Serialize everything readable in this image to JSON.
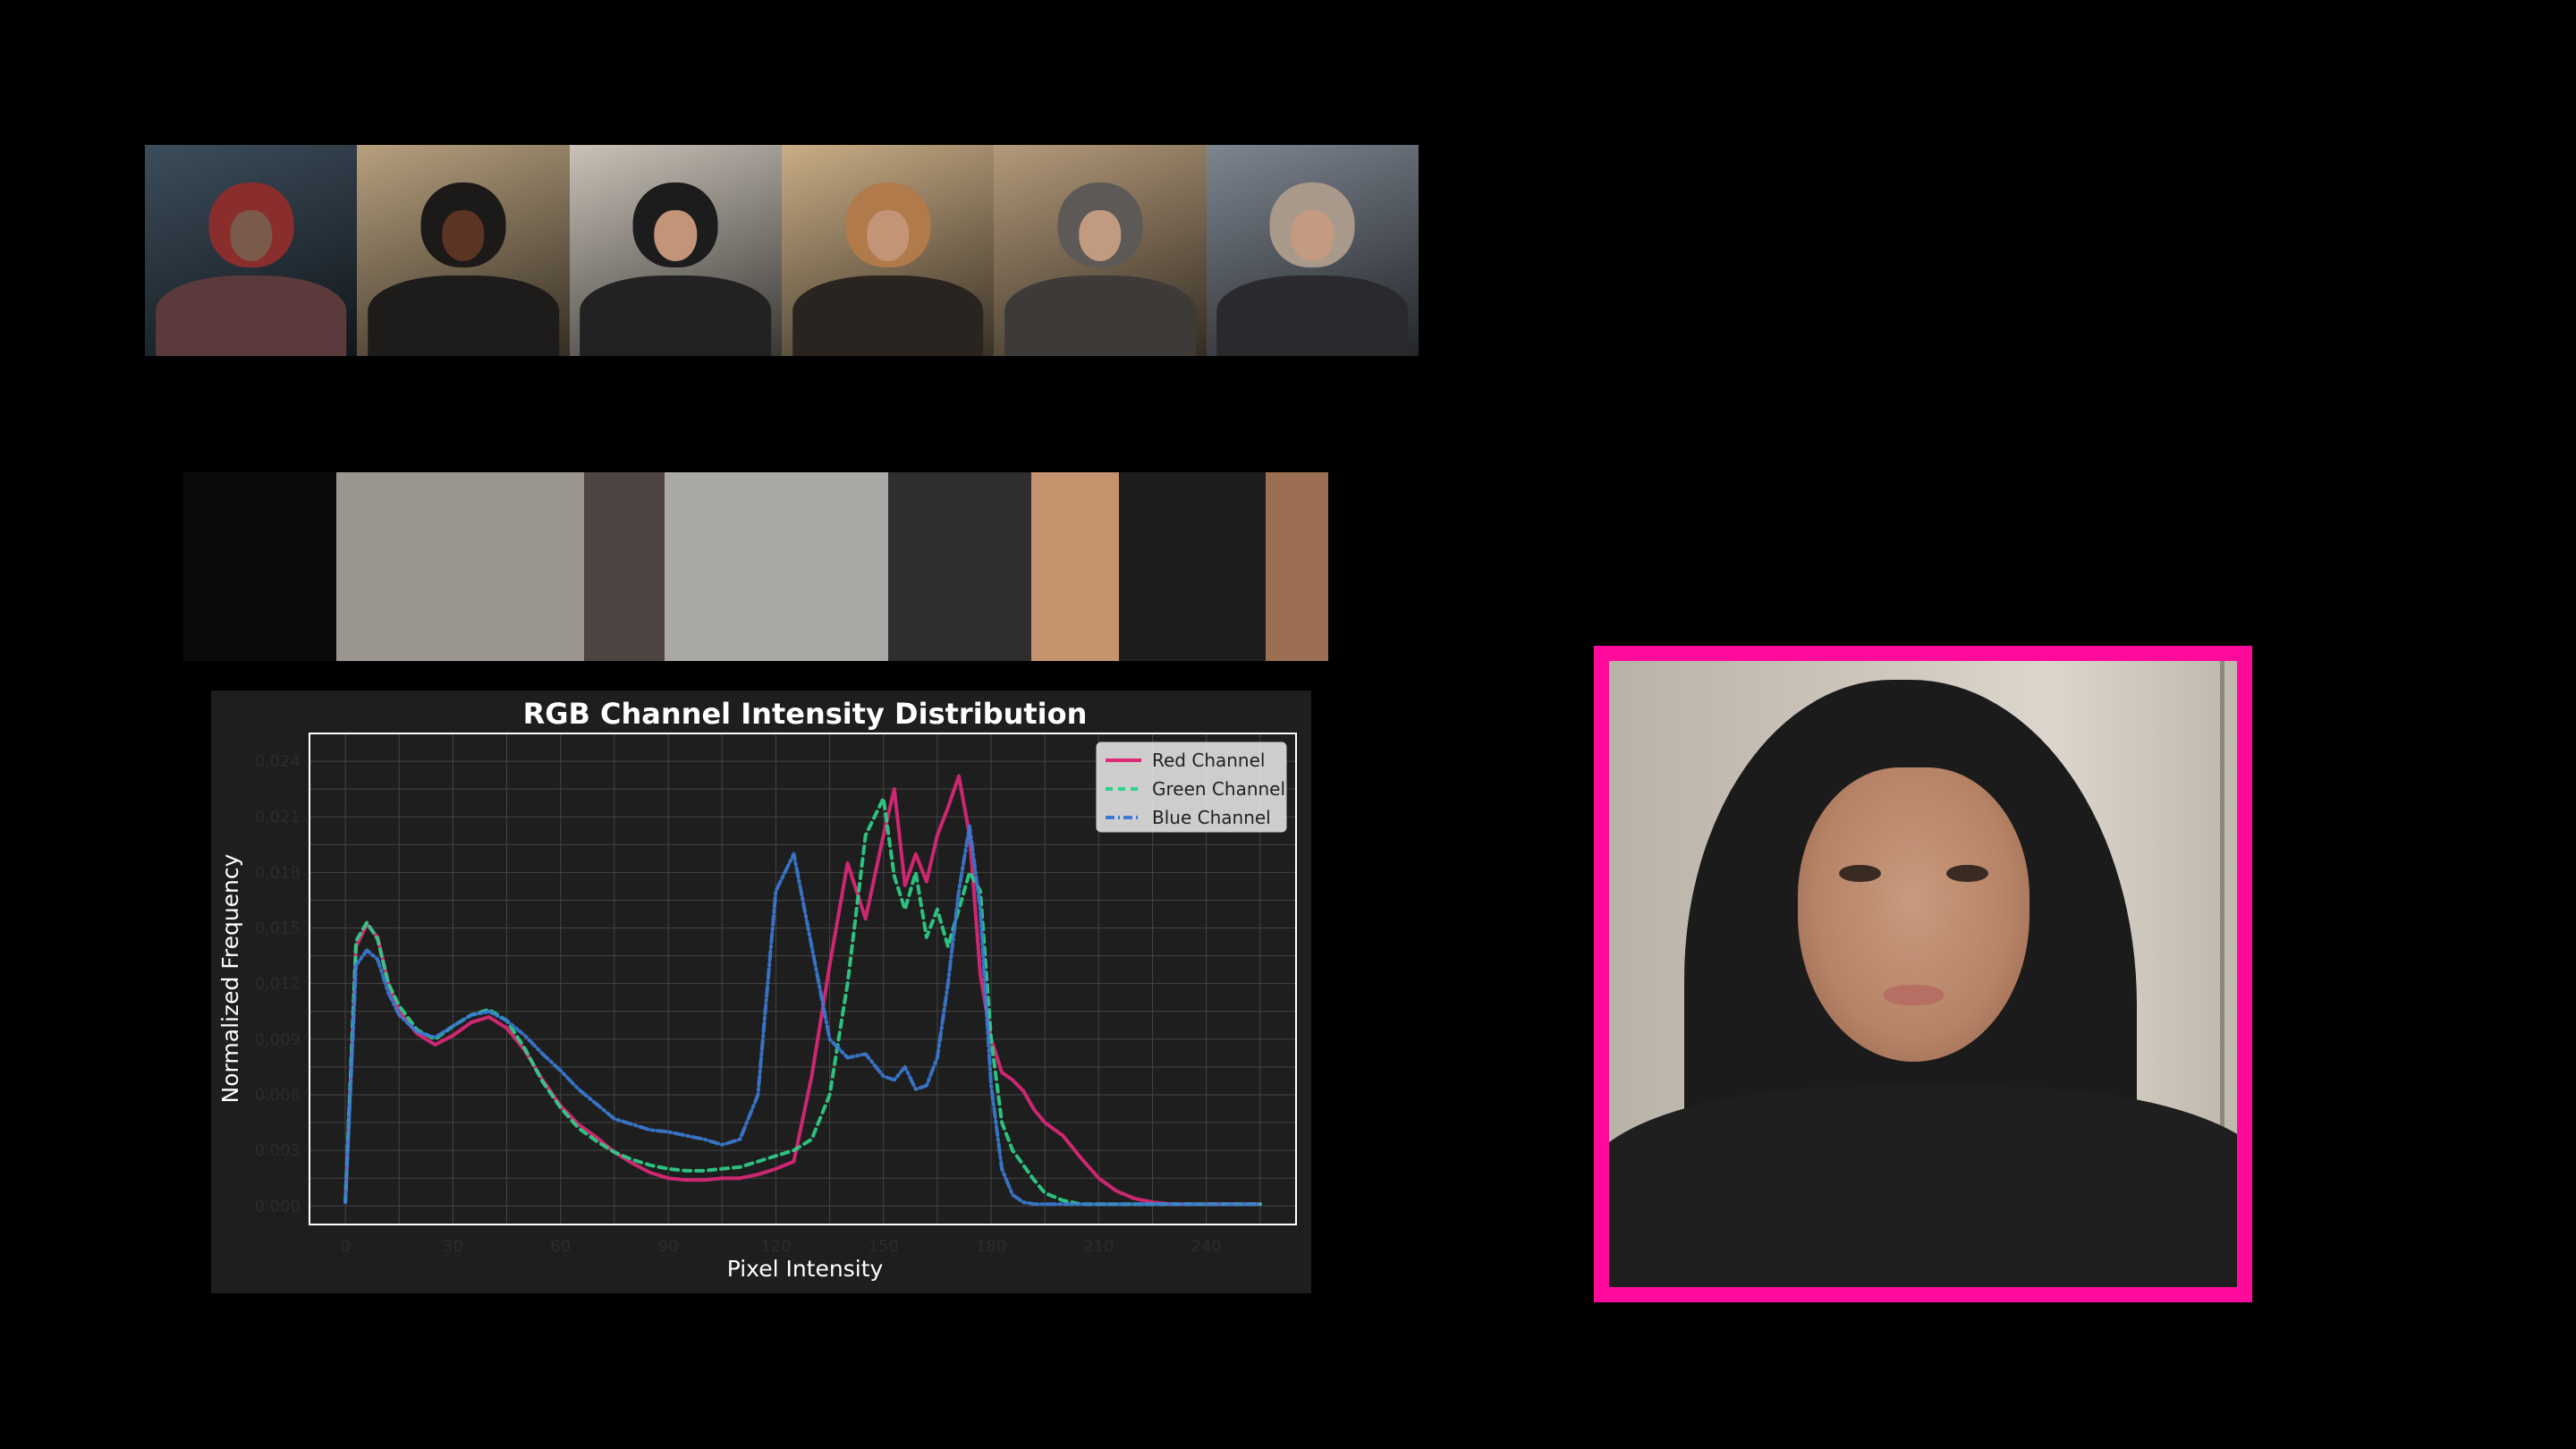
{
  "thumbnails": [
    {
      "name": "illustrated-portrait",
      "bg": "#3c4d5b",
      "scarf": "#8a2d2d",
      "face": "#7a5a4a",
      "body": "#5a3a3a"
    },
    {
      "name": "dark-skin-portrait",
      "bg": "#b7a07e",
      "scarf": "#1c1a19",
      "face": "#5c3424",
      "body": "#1e1c1b"
    },
    {
      "name": "black-hijab-portrait",
      "bg": "#c9c2b8",
      "scarf": "#1d1c1c",
      "face": "#c39478",
      "body": "#232222"
    },
    {
      "name": "arched-hall-portrait",
      "bg": "#c9ad85",
      "scarf": "#b07a4a",
      "face": "#c49476",
      "body": "#2a2420"
    },
    {
      "name": "desert-portrait",
      "bg": "#b49a7a",
      "scarf": "#5c5957",
      "face": "#c29a80",
      "body": "#3d3a38"
    },
    {
      "name": "city-street-portrait",
      "bg": "#7d8590",
      "scarf": "#a9998a",
      "face": "#c49a80",
      "body": "#2a2a2e"
    }
  ],
  "palette": [
    {
      "color": "#0b0b0b",
      "weight": 93
    },
    {
      "color": "#9a968e",
      "weight": 150
    },
    {
      "color": "#4e4442",
      "weight": 49
    },
    {
      "color": "#a9a8a4",
      "weight": 136
    },
    {
      "color": "#2f2d2e",
      "weight": 87
    },
    {
      "color": "#c4926c",
      "weight": 53
    },
    {
      "color": "#1d1d1f",
      "weight": 89
    },
    {
      "color": "#9c6e52",
      "weight": 38
    }
  ],
  "chart_data": {
    "type": "line",
    "title": "RGB Channel Intensity Distribution",
    "xlabel": "Pixel Intensity",
    "ylabel": "Normalized Frequency",
    "xlim": [
      -10,
      265
    ],
    "ylim": [
      -0.001,
      0.0255
    ],
    "xticks": [
      0,
      30,
      60,
      90,
      120,
      150,
      180,
      210,
      240
    ],
    "yticks": [
      0.0,
      0.003,
      0.006,
      0.009,
      0.012,
      0.015,
      0.018,
      0.021,
      0.024
    ],
    "ytick_labels": [
      "0.000",
      "0.003",
      "0.006",
      "0.009",
      "0.012",
      "0.015",
      "0.018",
      "0.021",
      "0.024"
    ],
    "grid": true,
    "legend_position": "top-right",
    "x": [
      0,
      3,
      6,
      9,
      12,
      15,
      20,
      25,
      30,
      35,
      40,
      45,
      50,
      55,
      60,
      65,
      70,
      75,
      80,
      85,
      90,
      95,
      100,
      105,
      110,
      115,
      120,
      125,
      130,
      135,
      140,
      145,
      150,
      153,
      156,
      159,
      162,
      165,
      168,
      171,
      174,
      177,
      180,
      183,
      186,
      189,
      192,
      195,
      200,
      205,
      210,
      215,
      220,
      225,
      230,
      235,
      240,
      245,
      250,
      255
    ],
    "series": [
      {
        "name": "Red Channel",
        "color": "#e0287a",
        "dash": "solid",
        "values": [
          0.0002,
          0.014,
          0.0152,
          0.0145,
          0.012,
          0.0105,
          0.0093,
          0.0087,
          0.0092,
          0.0099,
          0.0102,
          0.0096,
          0.0084,
          0.0068,
          0.0054,
          0.0044,
          0.0037,
          0.0029,
          0.0023,
          0.0018,
          0.0015,
          0.0014,
          0.0014,
          0.0015,
          0.0015,
          0.0017,
          0.002,
          0.0024,
          0.007,
          0.013,
          0.0185,
          0.0155,
          0.02,
          0.0225,
          0.0173,
          0.019,
          0.0175,
          0.02,
          0.0215,
          0.0232,
          0.02,
          0.0125,
          0.009,
          0.0072,
          0.0068,
          0.0062,
          0.0052,
          0.0045,
          0.0038,
          0.0026,
          0.0015,
          0.0008,
          0.0004,
          0.0002,
          0.0001,
          0.0001,
          0.0001,
          0.0001,
          0.0001,
          0.0001
        ]
      },
      {
        "name": "Green Channel",
        "color": "#2ed38a",
        "dash": "8,6",
        "values": [
          0.0002,
          0.0143,
          0.0153,
          0.0144,
          0.012,
          0.0108,
          0.0095,
          0.009,
          0.0097,
          0.0103,
          0.0106,
          0.01,
          0.0085,
          0.0067,
          0.0053,
          0.0042,
          0.0035,
          0.0029,
          0.0025,
          0.0022,
          0.002,
          0.0019,
          0.0019,
          0.002,
          0.0021,
          0.0024,
          0.0027,
          0.003,
          0.0036,
          0.006,
          0.012,
          0.02,
          0.022,
          0.0178,
          0.016,
          0.018,
          0.0145,
          0.016,
          0.014,
          0.016,
          0.018,
          0.017,
          0.009,
          0.0045,
          0.003,
          0.0022,
          0.0014,
          0.0007,
          0.0003,
          0.0001,
          0.0001,
          0.0001,
          0.0001,
          0.0001,
          0.0001,
          0.0001,
          0.0001,
          0.0001,
          0.0001,
          0.0001
        ]
      },
      {
        "name": "Blue Channel",
        "color": "#3a7bd5",
        "dash": "10,4,2,4",
        "values": [
          0.0002,
          0.013,
          0.0138,
          0.0133,
          0.0115,
          0.0103,
          0.0094,
          0.0091,
          0.0097,
          0.0103,
          0.0105,
          0.01,
          0.0092,
          0.0082,
          0.0073,
          0.0063,
          0.0055,
          0.0047,
          0.0044,
          0.0041,
          0.004,
          0.0038,
          0.0036,
          0.0033,
          0.0036,
          0.006,
          0.017,
          0.019,
          0.014,
          0.009,
          0.008,
          0.0082,
          0.007,
          0.0068,
          0.0075,
          0.0063,
          0.0065,
          0.008,
          0.012,
          0.017,
          0.0205,
          0.016,
          0.0065,
          0.002,
          0.0006,
          0.0002,
          0.0001,
          0.0001,
          0.0001,
          0.0001,
          0.0001,
          0.0001,
          0.0001,
          0.0001,
          0.0001,
          0.0001,
          0.0001,
          0.0001,
          0.0001,
          0.0001
        ]
      }
    ]
  },
  "colors": {
    "panel_bg": "#1e1e1e",
    "axes_bg": "#1e1e1e",
    "grid": "#444444",
    "frame": "#ffffff",
    "portrait_border": "#ff0a9a"
  }
}
